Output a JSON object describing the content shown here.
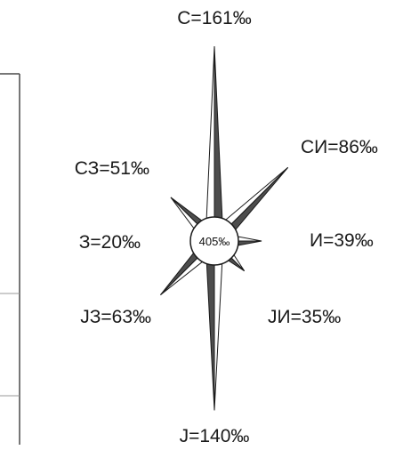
{
  "chart_data": {
    "type": "radar",
    "center_label": "405‰",
    "directions": [
      {
        "key": "N",
        "label": "С=161‰",
        "value": 161
      },
      {
        "key": "NE",
        "label": "СИ=86‰",
        "value": 86
      },
      {
        "key": "E",
        "label": "И=39‰",
        "value": 39
      },
      {
        "key": "SE",
        "label": "JИ=35‰",
        "value": 35
      },
      {
        "key": "S",
        "label": "J=140‰",
        "value": 140
      },
      {
        "key": "SW",
        "label": "JЗ=63‰",
        "value": 63
      },
      {
        "key": "W",
        "label": "З=20‰",
        "value": 20
      },
      {
        "key": "NW",
        "label": "СЗ=51‰",
        "value": 51
      }
    ],
    "colors": {
      "dark": "#4d4d4d",
      "light": "#ffffff",
      "outline": "#1a1a1a"
    }
  }
}
